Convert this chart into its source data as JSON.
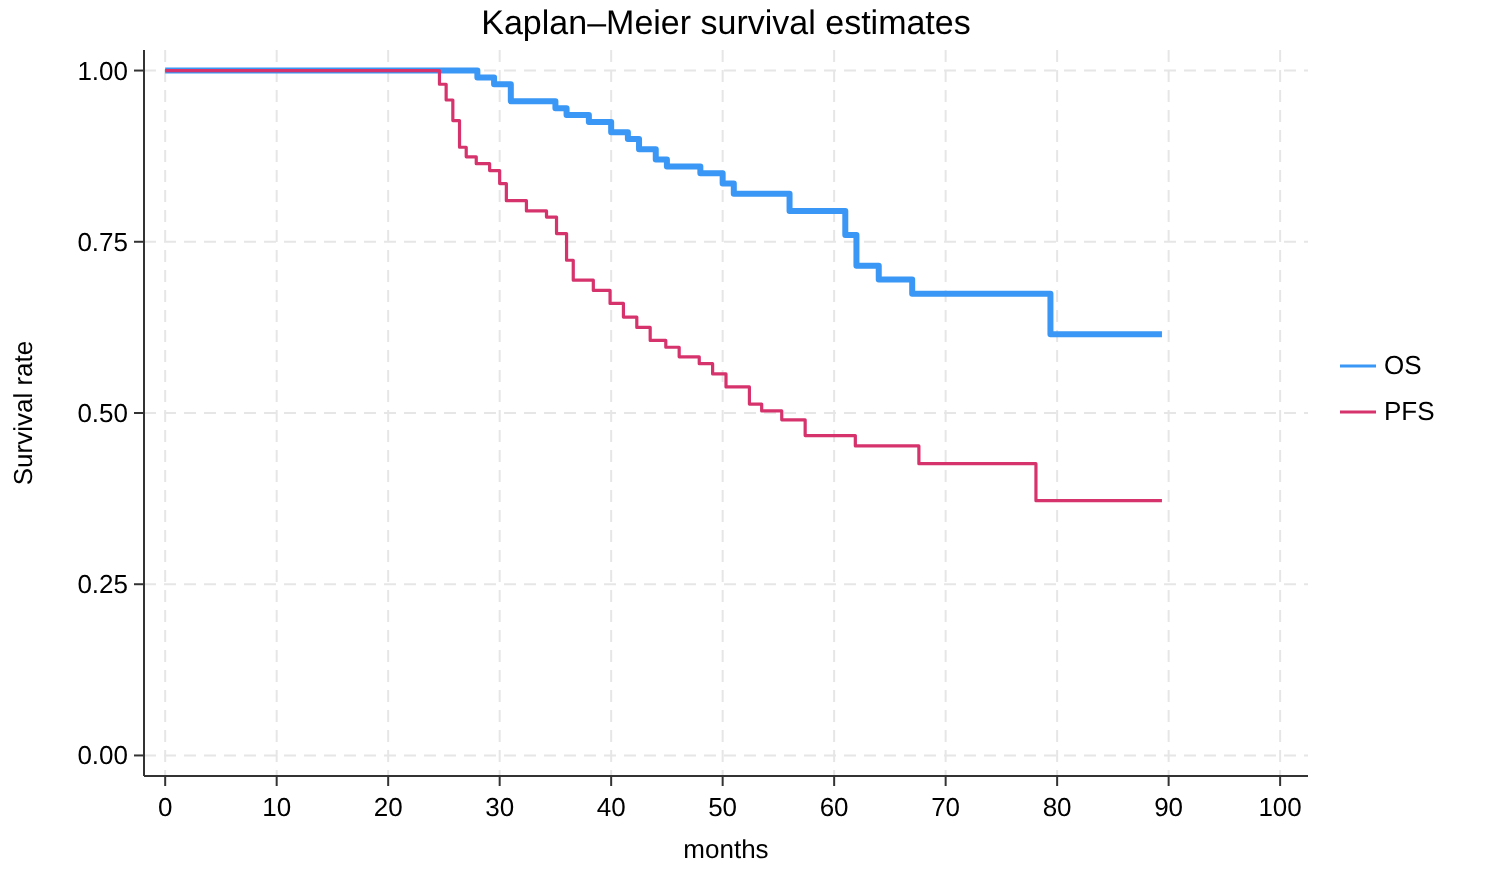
{
  "chart_data": {
    "type": "step",
    "title": "Kaplan–Meier survival estimates",
    "xlabel": "months",
    "ylabel": "Survival rate",
    "xlim": [
      -1.9,
      102.5
    ],
    "ylim": [
      -0.03,
      1.03
    ],
    "xticks": [
      0,
      10,
      20,
      30,
      40,
      50,
      60,
      70,
      80,
      90,
      100
    ],
    "yticks": [
      {
        "value": 0,
        "label": "0.00"
      },
      {
        "value": 0.25,
        "label": "0.25"
      },
      {
        "value": 0.5,
        "label": "0.50"
      },
      {
        "value": 0.75,
        "label": "0.75"
      },
      {
        "value": 1,
        "label": "1.00"
      }
    ],
    "grid": true,
    "legend": "right",
    "series": [
      {
        "name": "OS",
        "color": "#3a97f5",
        "x": [
          0,
          28,
          29.5,
          31,
          35,
          36,
          38,
          40,
          41.5,
          42.5,
          44,
          45,
          48,
          50,
          51,
          56,
          61,
          62,
          64,
          67,
          79.4,
          89.4
        ],
        "values": [
          1,
          0.99,
          0.98,
          0.955,
          0.945,
          0.935,
          0.925,
          0.91,
          0.9,
          0.885,
          0.87,
          0.86,
          0.85,
          0.835,
          0.82,
          0.795,
          0.76,
          0.715,
          0.695,
          0.674,
          0.615,
          0.615
        ]
      },
      {
        "name": "PFS",
        "color": "#d6336c",
        "x": [
          0,
          24.6,
          25.2,
          25.8,
          26.4,
          27,
          27.9,
          29.1,
          30,
          30.6,
          32.4,
          34.2,
          35.1,
          36,
          36.6,
          38.4,
          39.9,
          41.1,
          42.3,
          43.5,
          44.9,
          46.1,
          47.9,
          49.1,
          50.3,
          52.4,
          53.5,
          55.3,
          57.4,
          61.9,
          67.6,
          78.1,
          89.4
        ],
        "values": [
          1,
          0.98,
          0.957,
          0.927,
          0.888,
          0.874,
          0.864,
          0.854,
          0.835,
          0.81,
          0.795,
          0.786,
          0.762,
          0.723,
          0.694,
          0.679,
          0.66,
          0.64,
          0.625,
          0.606,
          0.596,
          0.582,
          0.572,
          0.557,
          0.538,
          0.513,
          0.503,
          0.49,
          0.467,
          0.452,
          0.426,
          0.372,
          0.372
        ]
      }
    ]
  }
}
